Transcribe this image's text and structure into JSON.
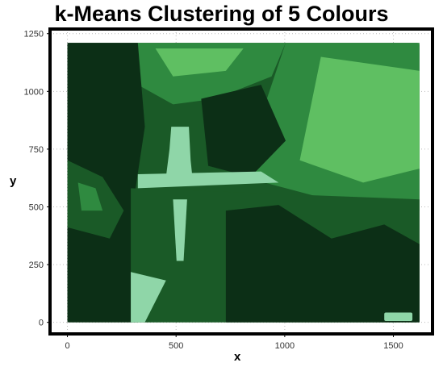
{
  "chart_data": {
    "type": "image",
    "title": "k-Means Clustering of 5 Colours",
    "xlabel": "x",
    "ylabel": "y",
    "xlim": [
      -80,
      1680
    ],
    "ylim": [
      -50,
      1270
    ],
    "x_ticks": [
      0,
      500,
      1000,
      1500
    ],
    "y_ticks": [
      0,
      250,
      500,
      750,
      1000,
      1250
    ],
    "image_extent": {
      "x": [
        0,
        1620
      ],
      "y": [
        0,
        1210
      ]
    },
    "cluster_colours": [
      "#0c2f16",
      "#1a5a27",
      "#2f8a40",
      "#5fbf62",
      "#8fd6a8"
    ],
    "grid": true,
    "frame_color": "#000000"
  }
}
